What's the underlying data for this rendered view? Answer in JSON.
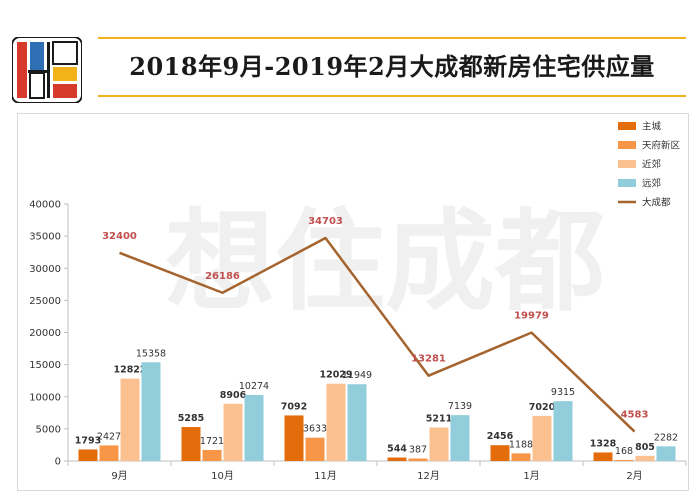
{
  "header": {
    "title": "2018年9月-2019年2月大成都新房住宅供应量"
  },
  "watermark": "想住成都",
  "colors": {
    "accent_rule": "#f2b21a",
    "logo_red": "#d63a2a",
    "logo_blue": "#2f6fb5",
    "logo_yellow": "#f2b21a",
    "logo_dark": "#1a1a1a"
  },
  "chart_data": {
    "type": "bar",
    "categories": [
      "9月",
      "10月",
      "11月",
      "12月",
      "1月",
      "2月"
    ],
    "ylim": [
      0,
      40000
    ],
    "yticks": [
      0,
      5000,
      10000,
      15000,
      20000,
      25000,
      30000,
      35000,
      40000
    ],
    "grid": false,
    "legend_position": "top-right",
    "series": [
      {
        "name": "主城",
        "type": "bar",
        "color": "#e46c0a",
        "values": [
          1793,
          5285,
          7092,
          544,
          2456,
          1328
        ]
      },
      {
        "name": "天府新区",
        "type": "bar",
        "color": "#f79646",
        "values": [
          2427,
          1721,
          3633,
          387,
          1188,
          168
        ]
      },
      {
        "name": "近郊",
        "type": "bar",
        "color": "#fac090",
        "values": [
          12822,
          8906,
          12029,
          5211,
          7020,
          805
        ]
      },
      {
        "name": "远郊",
        "type": "bar",
        "color": "#92cddc",
        "values": [
          15358,
          10274,
          11949,
          7139,
          9315,
          2282
        ]
      },
      {
        "name": "大成都",
        "type": "line",
        "color": "#a5632d",
        "values": [
          32400,
          26186,
          34703,
          13281,
          19979,
          4583
        ]
      }
    ]
  }
}
